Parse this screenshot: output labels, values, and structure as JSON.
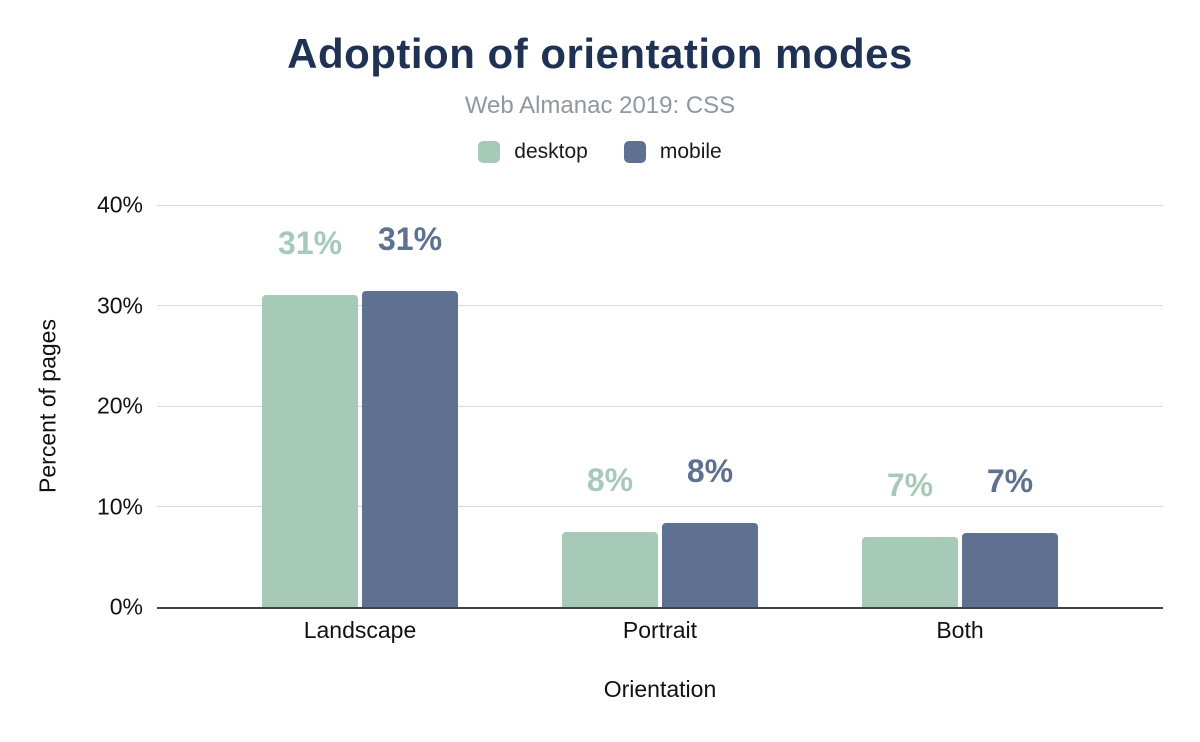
{
  "chart_data": {
    "type": "bar",
    "title": "Adoption of orientation modes",
    "subtitle": "Web Almanac 2019: CSS",
    "xlabel": "Orientation",
    "ylabel": "Percent of pages",
    "categories": [
      "Landscape",
      "Portrait",
      "Both"
    ],
    "series": [
      {
        "name": "desktop",
        "color": "#a7c9b8",
        "values": [
          31,
          7.5,
          7
        ],
        "labels": [
          "31%",
          "8%",
          "7%"
        ]
      },
      {
        "name": "mobile",
        "color": "#5e7190",
        "values": [
          31.4,
          8.4,
          7.4
        ],
        "labels": [
          "31%",
          "8%",
          "7%"
        ]
      }
    ],
    "ylim": [
      0,
      40
    ],
    "yticks": [
      "0%",
      "10%",
      "20%",
      "30%",
      "40%"
    ],
    "grid": true,
    "legend_position": "top"
  },
  "colors": {
    "title": "#1f3254",
    "subtitle": "#9097a0",
    "axis_text": "#111111",
    "gridline": "#d9d9d9",
    "axis_line": "#424242",
    "background": "#ffffff",
    "desktop_series": "#a7c9b8",
    "mobile_series": "#5e7190"
  }
}
